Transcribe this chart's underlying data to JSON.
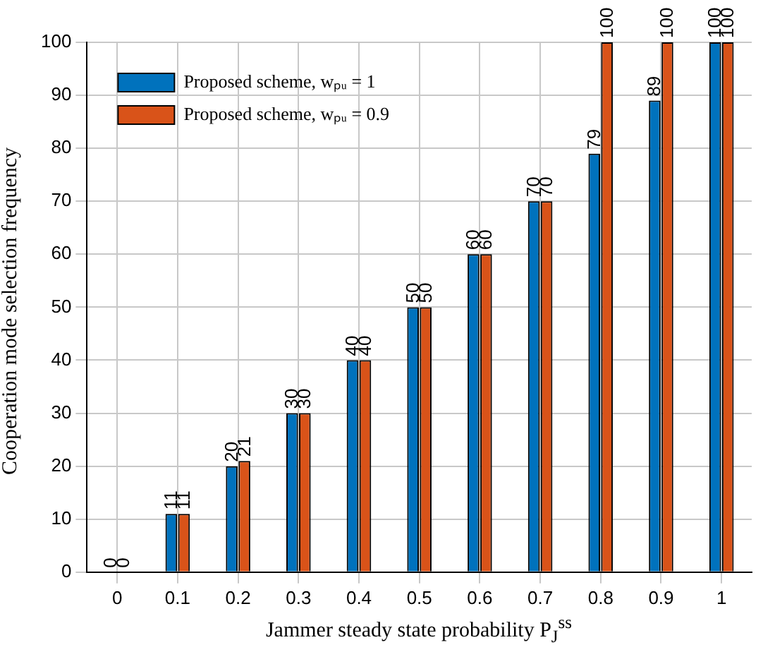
{
  "chart_data": {
    "type": "bar",
    "xlabel": "Jammer steady state probability P$_{J}$$^{ss}$",
    "ylabel": "Cooperation mode selection frequency",
    "categories": [
      "0",
      "0.1",
      "0.2",
      "0.3",
      "0.4",
      "0.5",
      "0.6",
      "0.7",
      "0.8",
      "0.9",
      "1"
    ],
    "series": [
      {
        "name": "Proposed scheme, wₚᵤ = 1",
        "color": "#0072bd",
        "values": [
          0,
          11,
          20,
          30,
          40,
          50,
          60,
          70,
          79,
          89,
          100
        ]
      },
      {
        "name": "Proposed scheme, wₚᵤ = 0.9",
        "color": "#d95319",
        "values": [
          0,
          11,
          21,
          30,
          40,
          50,
          60,
          70,
          100,
          100,
          100
        ]
      }
    ],
    "ylim": [
      0,
      100
    ],
    "yticks": [
      0,
      10,
      20,
      30,
      40,
      50,
      60,
      70,
      80,
      90,
      100
    ],
    "grid": true,
    "legend": "top left",
    "data_labels": true
  }
}
